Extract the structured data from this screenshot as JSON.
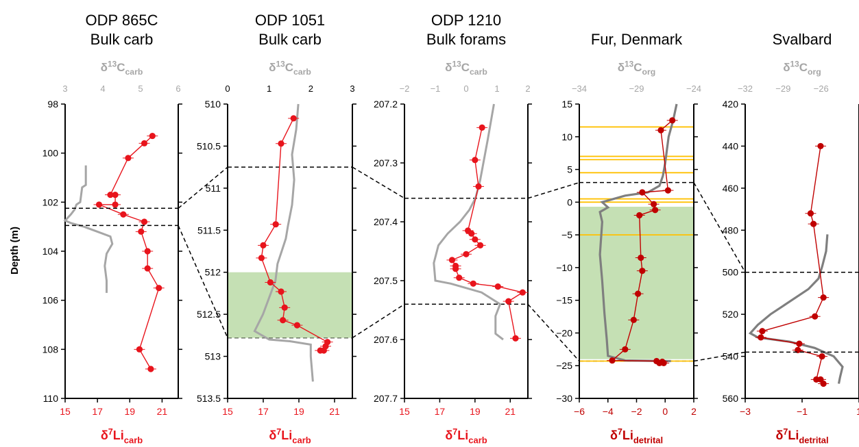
{
  "figure": {
    "y_axis_label": "Depth (m)"
  },
  "chart_data": [
    {
      "type": "line",
      "title": [
        "ODP 865C",
        "Bulk carb"
      ],
      "top_axis": {
        "label": "δ13C",
        "sub": "carb",
        "ticks": [
          "3",
          "4",
          "5",
          "6"
        ],
        "lim": [
          3,
          6
        ]
      },
      "bottom_axis": {
        "label": "δ7Li",
        "sub": "carb",
        "ticks": [
          "15",
          "17",
          "19",
          "21"
        ],
        "lim": [
          15,
          22
        ]
      },
      "depth": {
        "ticks": [
          "98",
          "100",
          "102",
          "104",
          "106",
          "108",
          "110"
        ],
        "lim": [
          98,
          110
        ]
      },
      "colors": {
        "li": "#e8141c",
        "c": "#a6a6a6",
        "dash": "#000000"
      },
      "li": [
        [
          20.4,
          99.3
        ],
        [
          19.9,
          99.6
        ],
        [
          18.9,
          100.2
        ],
        [
          17.8,
          101.7
        ],
        [
          18.1,
          101.7
        ],
        [
          18.1,
          102.1
        ],
        [
          17.1,
          102.1
        ],
        [
          18.6,
          102.5
        ],
        [
          19.9,
          102.8
        ],
        [
          19.7,
          103.2
        ],
        [
          20.1,
          104.0
        ],
        [
          20.1,
          104.7
        ],
        [
          20.8,
          105.5
        ],
        [
          19.6,
          108.0
        ],
        [
          20.3,
          108.8
        ]
      ],
      "c": [
        [
          3.55,
          100.5
        ],
        [
          3.55,
          101.3
        ],
        [
          3.45,
          101.4
        ],
        [
          3.4,
          102.0
        ],
        [
          3.3,
          102.1
        ],
        [
          3.25,
          102.3
        ],
        [
          3.15,
          102.5
        ],
        [
          3.0,
          102.75
        ],
        [
          3.15,
          102.85
        ],
        [
          3.5,
          103.0
        ],
        [
          3.85,
          103.2
        ],
        [
          4.2,
          103.4
        ],
        [
          4.25,
          103.7
        ],
        [
          4.1,
          104.1
        ],
        [
          4.05,
          104.6
        ],
        [
          4.1,
          105.2
        ],
        [
          4.1,
          105.7
        ]
      ],
      "bands": [],
      "lines": [],
      "dashes": [
        102.25,
        102.95
      ]
    },
    {
      "type": "line",
      "title": [
        "ODP 1051",
        "Bulk carb"
      ],
      "top_axis": {
        "label": "δ13C",
        "sub": "carb",
        "ticks": [
          "0",
          "1",
          "2",
          "3"
        ],
        "lim": [
          0,
          3
        ]
      },
      "bottom_axis": {
        "label": "δ7Li",
        "sub": "carb",
        "ticks": [
          "15",
          "17",
          "19",
          "21"
        ],
        "lim": [
          15,
          22
        ]
      },
      "depth": {
        "ticks": [
          "510",
          "510.5",
          "511",
          "511.5",
          "512",
          "512.5",
          "513",
          "513.5"
        ],
        "lim": [
          510,
          513.5
        ]
      },
      "colors": {
        "li": "#e8141c",
        "c": "#a6a6a6",
        "dash": "#000000"
      },
      "li": [
        [
          18.7,
          510.17
        ],
        [
          18.0,
          510.47
        ],
        [
          17.7,
          511.43
        ],
        [
          17.0,
          511.68
        ],
        [
          16.9,
          511.83
        ],
        [
          17.4,
          512.12
        ],
        [
          18.0,
          512.23
        ],
        [
          18.2,
          512.42
        ],
        [
          18.1,
          512.57
        ],
        [
          18.9,
          512.63
        ],
        [
          20.6,
          512.83
        ],
        [
          20.5,
          512.88
        ],
        [
          20.4,
          512.93
        ],
        [
          20.2,
          512.93
        ]
      ],
      "c": [
        [
          1.7,
          510.0
        ],
        [
          1.65,
          510.3
        ],
        [
          1.55,
          510.6
        ],
        [
          1.6,
          510.9
        ],
        [
          1.55,
          511.2
        ],
        [
          1.45,
          511.45
        ],
        [
          1.4,
          511.6
        ],
        [
          1.3,
          511.75
        ],
        [
          1.2,
          511.9
        ],
        [
          1.15,
          512.1
        ],
        [
          1.0,
          512.3
        ],
        [
          0.85,
          512.5
        ],
        [
          0.65,
          512.7
        ],
        [
          1.0,
          512.8
        ],
        [
          1.5,
          512.82
        ],
        [
          2.0,
          512.86
        ],
        [
          2.0,
          513.0
        ],
        [
          2.05,
          513.3
        ]
      ],
      "bands": [
        [
          512.0,
          512.78
        ]
      ],
      "lines": [],
      "dashes": []
    },
    {
      "type": "line",
      "title": [
        "ODP 1210",
        "Bulk forams"
      ],
      "top_axis": {
        "label": "δ13C",
        "sub": "carb",
        "ticks": [
          "−2",
          "−1",
          "0",
          "1",
          "2"
        ],
        "lim": [
          -2,
          2
        ]
      },
      "bottom_axis": {
        "label": "δ7Li",
        "sub": "carb",
        "ticks": [
          "15",
          "17",
          "19",
          "21"
        ],
        "lim": [
          15,
          22
        ]
      },
      "depth": {
        "ticks": [
          "207.2",
          "207.3",
          "207.4",
          "207.5",
          "207.6",
          "207.7"
        ],
        "lim": [
          207.2,
          207.7
        ]
      },
      "colors": {
        "li": "#e8141c",
        "c": "#a6a6a6",
        "dash": "#000000"
      },
      "li": [
        [
          19.4,
          207.24
        ],
        [
          19.0,
          207.295
        ],
        [
          19.2,
          207.34
        ],
        [
          18.6,
          207.415
        ],
        [
          18.8,
          207.42
        ],
        [
          19.0,
          207.43
        ],
        [
          19.3,
          207.44
        ],
        [
          18.5,
          207.455
        ],
        [
          17.7,
          207.465
        ],
        [
          17.9,
          207.475
        ],
        [
          17.9,
          207.48
        ],
        [
          18.1,
          207.495
        ],
        [
          18.9,
          207.505
        ],
        [
          20.3,
          207.51
        ],
        [
          21.7,
          207.52
        ],
        [
          20.9,
          207.535
        ],
        [
          21.3,
          207.598
        ]
      ],
      "c": [
        [
          0.9,
          207.2
        ],
        [
          0.7,
          207.26
        ],
        [
          0.45,
          207.33
        ],
        [
          0.3,
          207.36
        ],
        [
          0.1,
          207.38
        ],
        [
          -0.2,
          207.4
        ],
        [
          -0.6,
          207.42
        ],
        [
          -0.9,
          207.44
        ],
        [
          -1.05,
          207.47
        ],
        [
          -1.0,
          207.5
        ],
        [
          -0.5,
          207.505
        ],
        [
          0.5,
          207.52
        ],
        [
          1.1,
          207.54
        ],
        [
          0.95,
          207.56
        ],
        [
          0.95,
          207.59
        ],
        [
          1.2,
          207.6
        ]
      ],
      "bands": [],
      "lines": [],
      "dashes": []
    },
    {
      "type": "line",
      "title": [
        "Fur, Denmark",
        ""
      ],
      "top_axis": {
        "label": "δ13C",
        "sub": "org",
        "ticks": [
          "−34",
          "−29",
          "−24"
        ],
        "lim": [
          -34,
          -24
        ]
      },
      "bottom_axis": {
        "label": "δ7Li",
        "sub": "detrital",
        "ticks": [
          "−6",
          "−4",
          "−2",
          "0",
          "2"
        ],
        "lim": [
          -6,
          2
        ]
      },
      "depth": {
        "ticks": [
          "15",
          "10",
          "5",
          "0",
          "−5",
          "−10",
          "−15",
          "−20",
          "−25",
          "−30"
        ],
        "lim": [
          15,
          -30
        ]
      },
      "colors": {
        "li": "#c00000",
        "c": "#7f7f7f",
        "dash": "#000000",
        "band_line": "#ffc000"
      },
      "li": [
        [
          0.5,
          12.5
        ],
        [
          -0.3,
          11.0
        ],
        [
          0.2,
          1.8
        ],
        [
          -1.6,
          1.5
        ],
        [
          -0.8,
          -0.3
        ],
        [
          -0.7,
          -1.2
        ],
        [
          -1.8,
          -2.0
        ],
        [
          -1.7,
          -8.5
        ],
        [
          -1.6,
          -10.5
        ],
        [
          -1.9,
          -14.0
        ],
        [
          -2.2,
          -18.0
        ],
        [
          -2.8,
          -22.5
        ],
        [
          -3.7,
          -24.2
        ],
        [
          -0.6,
          -24.3
        ],
        [
          -0.4,
          -24.6
        ],
        [
          -0.2,
          -24.4
        ],
        [
          -0.1,
          -24.6
        ]
      ],
      "c": [
        [
          -25.5,
          15.0
        ],
        [
          -25.8,
          12.5
        ],
        [
          -26.2,
          10.0
        ],
        [
          -26.5,
          6.0
        ],
        [
          -26.7,
          4.0
        ],
        [
          -27.0,
          2.5
        ],
        [
          -28.0,
          1.5
        ],
        [
          -30.0,
          1.0
        ],
        [
          -32.0,
          0.0
        ],
        [
          -31.5,
          -0.8
        ],
        [
          -32.2,
          -1.5
        ],
        [
          -32.0,
          -3.0
        ],
        [
          -32.2,
          -8.0
        ],
        [
          -32.0,
          -12.0
        ],
        [
          -31.8,
          -17.0
        ],
        [
          -31.6,
          -21.0
        ],
        [
          -31.5,
          -23.5
        ],
        [
          -30.0,
          -24.2
        ],
        [
          -26.0,
          -24.3
        ]
      ],
      "bands": [
        [
          -0.7,
          -24.0
        ]
      ],
      "lines": [
        11.5,
        7.0,
        6.5,
        4.5,
        0.5,
        0.0,
        -5.0,
        -24.3
      ],
      "dashes": []
    },
    {
      "type": "line",
      "title": [
        "Svalbard",
        ""
      ],
      "top_axis": {
        "label": "δ13C",
        "sub": "org",
        "ticks": [
          "−32",
          "−29",
          "−26"
        ],
        "lim": [
          -32,
          -23
        ]
      },
      "bottom_axis": {
        "label": "δ7Li",
        "sub": "detrital",
        "ticks": [
          "−3",
          "−1",
          "1"
        ],
        "lim": [
          -3,
          1
        ]
      },
      "depth": {
        "ticks": [
          "420",
          "440",
          "460",
          "480",
          "500",
          "520",
          "540",
          "560"
        ],
        "lim": [
          420,
          560
        ]
      },
      "colors": {
        "li": "#c00000",
        "c": "#7f7f7f",
        "dash": "#000000"
      },
      "li": [
        [
          -0.35,
          440
        ],
        [
          -0.7,
          472
        ],
        [
          -0.6,
          477
        ],
        [
          -0.25,
          512
        ],
        [
          -0.55,
          521
        ],
        [
          -2.4,
          528
        ],
        [
          -2.45,
          531
        ],
        [
          -1.1,
          534
        ],
        [
          -1.15,
          537
        ],
        [
          -0.3,
          540
        ],
        [
          -0.5,
          551
        ],
        [
          -0.35,
          551
        ],
        [
          -0.25,
          553
        ]
      ],
      "c": [
        [
          -25.5,
          482
        ],
        [
          -25.6,
          490
        ],
        [
          -25.9,
          497
        ],
        [
          -26.2,
          503
        ],
        [
          -27.0,
          508
        ],
        [
          -28.0,
          512
        ],
        [
          -29.0,
          516
        ],
        [
          -30.0,
          520
        ],
        [
          -31.0,
          525
        ],
        [
          -31.6,
          529
        ],
        [
          -31.0,
          531
        ],
        [
          -28.5,
          533
        ],
        [
          -26.5,
          536
        ],
        [
          -25.0,
          540
        ],
        [
          -24.3,
          545
        ],
        [
          -24.5,
          550
        ],
        [
          -24.6,
          553
        ]
      ],
      "bands": [],
      "lines": [],
      "dashes": [
        500,
        538
      ]
    }
  ]
}
